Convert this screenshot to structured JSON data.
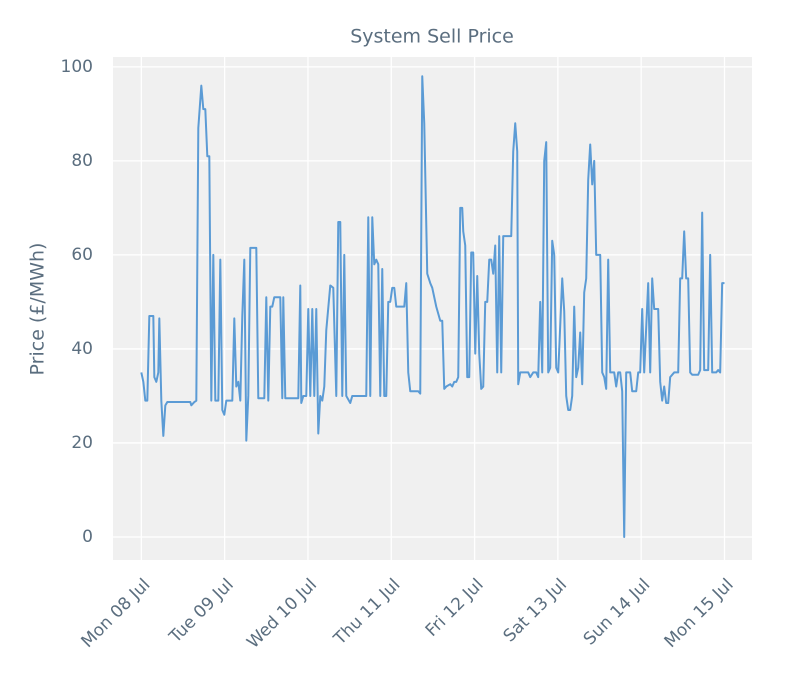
{
  "chart_data": {
    "type": "line",
    "title": "System Sell Price",
    "ylabel": "Price (£/MWh)",
    "x": [
      0,
      0.024,
      0.048,
      0.072,
      0.096,
      0.144,
      0.156,
      0.18,
      0.204,
      0.216,
      0.24,
      0.264,
      0.288,
      0.312,
      0.588,
      0.6,
      0.636,
      0.66,
      0.684,
      0.72,
      0.744,
      0.768,
      0.792,
      0.816,
      0.84,
      0.864,
      0.888,
      0.924,
      0.948,
      0.972,
      0.996,
      1.02,
      1.092,
      1.116,
      1.14,
      1.164,
      1.188,
      1.212,
      1.236,
      1.26,
      1.284,
      1.308,
      1.38,
      1.404,
      1.476,
      1.5,
      1.524,
      1.548,
      1.572,
      1.596,
      1.668,
      1.692,
      1.704,
      1.728,
      1.884,
      1.908,
      1.92,
      1.944,
      1.98,
      2.004,
      2.028,
      2.052,
      2.076,
      2.1,
      2.124,
      2.148,
      2.172,
      2.196,
      2.22,
      2.268,
      2.304,
      2.34,
      2.364,
      2.388,
      2.412,
      2.436,
      2.46,
      2.508,
      2.532,
      2.7,
      2.724,
      2.748,
      2.772,
      2.796,
      2.82,
      2.844,
      2.868,
      2.892,
      2.916,
      2.94,
      2.964,
      2.988,
      3.012,
      3.036,
      3.06,
      3.156,
      3.18,
      3.204,
      3.228,
      3.324,
      3.348,
      3.372,
      3.396,
      3.432,
      3.468,
      3.492,
      3.54,
      3.588,
      3.612,
      3.636,
      3.66,
      3.708,
      3.732,
      3.756,
      3.78,
      3.804,
      3.828,
      3.852,
      3.864,
      3.888,
      3.912,
      3.936,
      3.96,
      3.984,
      4.008,
      4.032,
      4.056,
      4.08,
      4.104,
      4.128,
      4.152,
      4.176,
      4.2,
      4.224,
      4.248,
      4.272,
      4.296,
      4.32,
      4.344,
      4.44,
      4.464,
      4.488,
      4.512,
      4.524,
      4.548,
      4.644,
      4.668,
      4.704,
      4.74,
      4.764,
      4.788,
      4.812,
      4.836,
      4.86,
      4.884,
      4.908,
      4.932,
      4.956,
      4.98,
      5.004,
      5.052,
      5.076,
      5.1,
      5.124,
      5.148,
      5.172,
      5.196,
      5.22,
      5.244,
      5.268,
      5.292,
      5.316,
      5.34,
      5.364,
      5.388,
      5.412,
      5.436,
      5.46,
      5.508,
      5.532,
      5.556,
      5.58,
      5.604,
      5.628,
      5.676,
      5.7,
      5.724,
      5.748,
      5.772,
      5.796,
      5.82,
      5.868,
      5.892,
      5.94,
      5.964,
      5.988,
      6.012,
      6.036,
      6.084,
      6.108,
      6.132,
      6.156,
      6.204,
      6.228,
      6.252,
      6.276,
      6.3,
      6.324,
      6.348,
      6.396,
      6.444,
      6.468,
      6.492,
      6.516,
      6.54,
      6.564,
      6.588,
      6.612,
      6.684,
      6.708,
      6.732,
      6.756,
      6.804,
      6.828,
      6.852,
      6.9,
      6.924,
      6.948,
      6.972,
      7
    ],
    "series": [
      {
        "name": "System Sell Price",
        "color": "#5b9bd5",
        "values": [
          35,
          33,
          29,
          29,
          47,
          47,
          34,
          33,
          35,
          46.5,
          29,
          21.5,
          28,
          28.7,
          28.7,
          28,
          28.7,
          29,
          87,
          96,
          91,
          91,
          81,
          81,
          29,
          60,
          29,
          29,
          59,
          27,
          26,
          29,
          29,
          46.5,
          32,
          33,
          29,
          47,
          59,
          20.5,
          30,
          61.5,
          61.5,
          29.5,
          29.5,
          51,
          29,
          49,
          49,
          51,
          51,
          29.5,
          51,
          29.5,
          29.5,
          53.5,
          28.5,
          30,
          30,
          48.5,
          30,
          48.5,
          30,
          48.5,
          22,
          30,
          29,
          32,
          44,
          53.5,
          53,
          30,
          67,
          67,
          30,
          60,
          30,
          28.5,
          30,
          30,
          68,
          30,
          68,
          58,
          59,
          58,
          30,
          57,
          30,
          30,
          50,
          50,
          53,
          53,
          49,
          49,
          54,
          35,
          31,
          31,
          30.5,
          98,
          88,
          56,
          54,
          53,
          49,
          46,
          46,
          31.5,
          32,
          32.5,
          32,
          33,
          33,
          34,
          70,
          70,
          65,
          62,
          34,
          34,
          60.5,
          60.5,
          39,
          55.5,
          39,
          31.5,
          32,
          50,
          50,
          59,
          59,
          56,
          62,
          35,
          64,
          35,
          64,
          64,
          82,
          88,
          82,
          32.5,
          35,
          35,
          34,
          35,
          35,
          34,
          50,
          35,
          80,
          84,
          35,
          36,
          63,
          60,
          36,
          35,
          55,
          48,
          30,
          27,
          27,
          30,
          49,
          34,
          36,
          43.5,
          32.5,
          52,
          55,
          76,
          83.5,
          75,
          80,
          60,
          60,
          35,
          34,
          31.5,
          59,
          35,
          35,
          32,
          35,
          35,
          31,
          0,
          35,
          35,
          31,
          31,
          35,
          35,
          48.5,
          35,
          54,
          35,
          55,
          48.5,
          48.5,
          33,
          29,
          32,
          28.5,
          28.5,
          34,
          35,
          35,
          55,
          55,
          65,
          55,
          55,
          35,
          34.5,
          34.5,
          35.5,
          69,
          35.5,
          35.5,
          60,
          35,
          35,
          35.5,
          35,
          54,
          54
        ]
      }
    ],
    "xlim": [
      -0.34,
      7.33
    ],
    "xticks": [
      {
        "value": 0,
        "label": "Mon 08 Jul"
      },
      {
        "value": 1,
        "label": "Tue 09 Jul"
      },
      {
        "value": 2,
        "label": "Wed 10 Jul"
      },
      {
        "value": 3,
        "label": "Thu 11 Jul"
      },
      {
        "value": 4,
        "label": "Fri 12 Jul"
      },
      {
        "value": 5,
        "label": "Sat 13 Jul"
      },
      {
        "value": 6,
        "label": "Sun 14 Jul"
      },
      {
        "value": 7,
        "label": "Mon 15 Jul"
      }
    ],
    "ylim": [
      -4.9,
      102.1
    ],
    "yticks": [
      0,
      20,
      40,
      60,
      80,
      100
    ],
    "grid": true
  }
}
